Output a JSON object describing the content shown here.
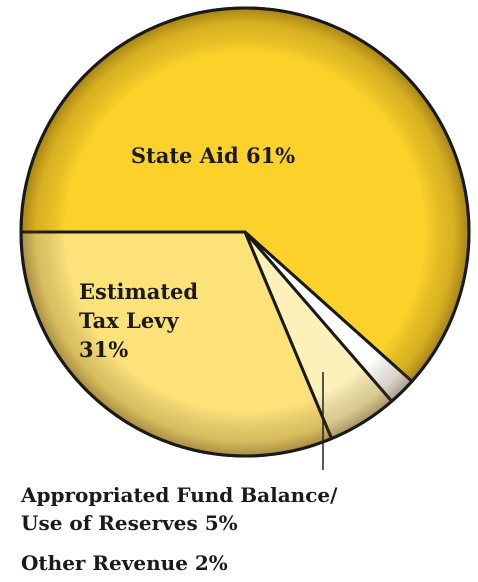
{
  "chart_data": {
    "type": "pie",
    "title": "",
    "slices": [
      {
        "label": "State Aid 61%",
        "value": 61,
        "color": "#fcd22a"
      },
      {
        "label": "Other Revenue 2%",
        "value": 2,
        "color": "#ffffff"
      },
      {
        "label": "Appropriated Fund Balance/ Use of Reserves 5%",
        "value": 5,
        "color": "#fdf0b8"
      },
      {
        "label": "Estimated Tax Levy 31%",
        "value": 31,
        "color": "#fde27a"
      }
    ]
  },
  "labels": {
    "state_aid": "State Aid 61%",
    "tax_levy_line1": "Estimated",
    "tax_levy_line2": "Tax Levy",
    "tax_levy_line3": "31%",
    "fund_balance_line1": "Appropriated Fund Balance/",
    "fund_balance_line2": "Use of Reserves 5%",
    "other_revenue": "Other Revenue 2%"
  }
}
